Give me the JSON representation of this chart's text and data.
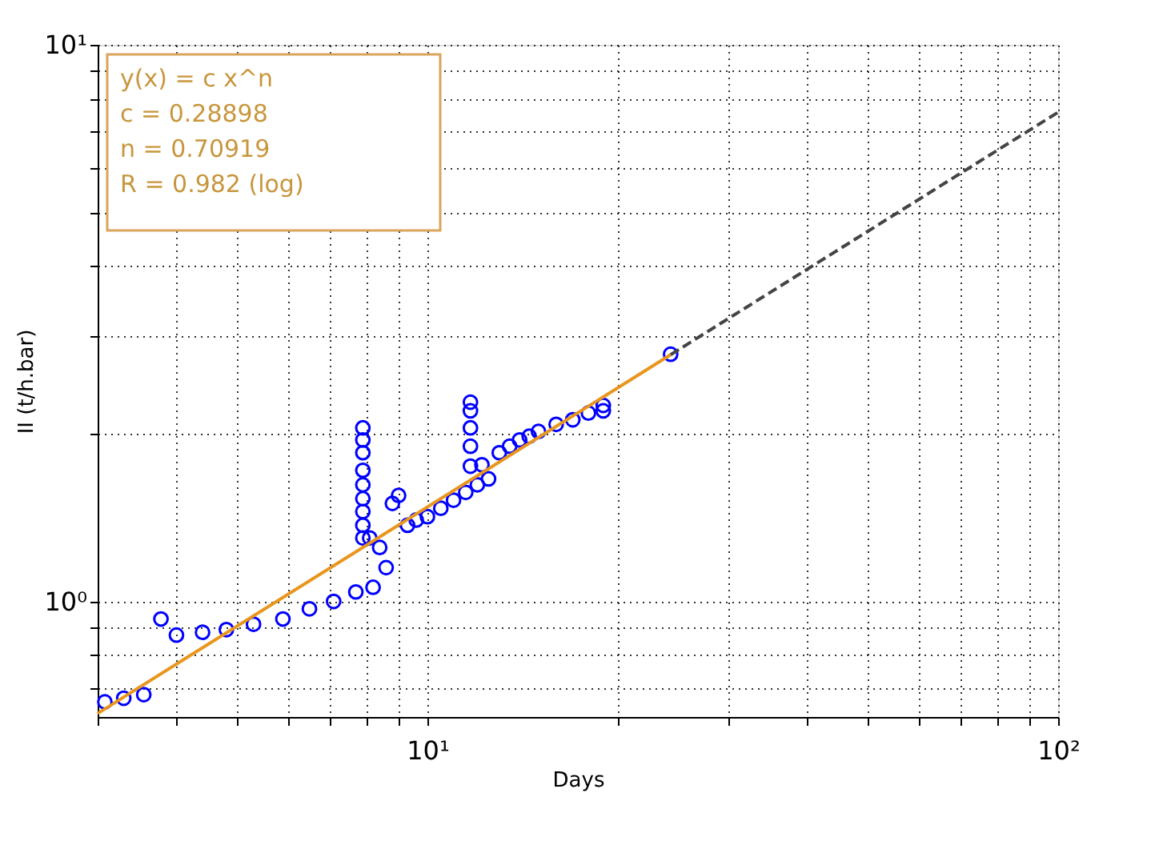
{
  "chart_data": {
    "type": "scatter",
    "xlabel": "Days",
    "ylabel": "II (t/h.bar)",
    "log": "xy",
    "grid": true,
    "xlim": [
      3,
      100
    ],
    "ylim": [
      0.62,
      10
    ],
    "xticks": [
      {
        "value": 3,
        "label": null
      },
      {
        "value": 4,
        "label": null
      },
      {
        "value": 5,
        "label": null
      },
      {
        "value": 6,
        "label": null
      },
      {
        "value": 7,
        "label": null
      },
      {
        "value": 8,
        "label": null
      },
      {
        "value": 9,
        "label": null
      },
      {
        "value": 10,
        "label": "10¹"
      },
      {
        "value": 20,
        "label": null
      },
      {
        "value": 30,
        "label": null
      },
      {
        "value": 40,
        "label": null
      },
      {
        "value": 50,
        "label": null
      },
      {
        "value": 60,
        "label": null
      },
      {
        "value": 70,
        "label": null
      },
      {
        "value": 80,
        "label": null
      },
      {
        "value": 90,
        "label": null
      },
      {
        "value": 100,
        "label": "10²"
      }
    ],
    "yticks": [
      {
        "value": 0.7,
        "label": null
      },
      {
        "value": 0.8,
        "label": null
      },
      {
        "value": 0.9,
        "label": null
      },
      {
        "value": 1,
        "label": "10⁰"
      },
      {
        "value": 2,
        "label": null
      },
      {
        "value": 3,
        "label": null
      },
      {
        "value": 4,
        "label": null
      },
      {
        "value": 5,
        "label": null
      },
      {
        "value": 6,
        "label": null
      },
      {
        "value": 7,
        "label": null
      },
      {
        "value": 8,
        "label": null
      },
      {
        "value": 9,
        "label": null
      },
      {
        "value": 10,
        "label": "10¹"
      }
    ],
    "annotations": [
      "y(x) = c x^n",
      "c = 0.28898",
      "n = 0.70919",
      "R = 0.982  (log)"
    ],
    "series": [
      {
        "marker": "circle",
        "color": "#0000ff",
        "x": [
          3.08,
          3.3,
          3.55,
          3.78,
          4.0,
          4.4,
          4.8,
          5.3,
          5.9,
          6.5,
          7.1,
          7.7,
          8.2,
          7.9,
          7.9,
          7.9,
          7.9,
          7.9,
          7.9,
          7.9,
          7.9,
          7.9,
          8.1,
          8.4,
          8.6,
          8.8,
          9.0,
          9.3,
          9.6,
          10,
          10.5,
          11,
          11.5,
          12,
          12.5,
          11.7,
          11.7,
          11.7,
          11.7,
          11.7,
          12.2,
          13,
          13.5,
          14,
          14.5,
          15,
          16,
          17,
          18,
          19,
          19,
          24.3
        ],
        "values": [
          0.66,
          0.67,
          0.68,
          0.93,
          0.87,
          0.88,
          0.89,
          0.91,
          0.93,
          0.97,
          1.0,
          1.04,
          1.06,
          1.3,
          1.37,
          1.45,
          1.53,
          1.62,
          1.72,
          1.85,
          1.95,
          2.05,
          1.3,
          1.25,
          1.15,
          1.5,
          1.55,
          1.37,
          1.4,
          1.42,
          1.47,
          1.52,
          1.57,
          1.62,
          1.66,
          1.75,
          1.9,
          2.05,
          2.2,
          2.28,
          1.76,
          1.85,
          1.9,
          1.95,
          1.98,
          2.02,
          2.08,
          2.12,
          2.18,
          2.2,
          2.25,
          2.78
        ]
      },
      {
        "type": "line",
        "color": "#e8961e",
        "line_style": "solid",
        "x": [
          3,
          24.3
        ],
        "values": [
          0.629,
          2.775
        ]
      },
      {
        "type": "line",
        "color": "#444444",
        "line_style": "dashed",
        "x": [
          24.3,
          100
        ],
        "values": [
          2.775,
          7.566
        ]
      }
    ]
  }
}
